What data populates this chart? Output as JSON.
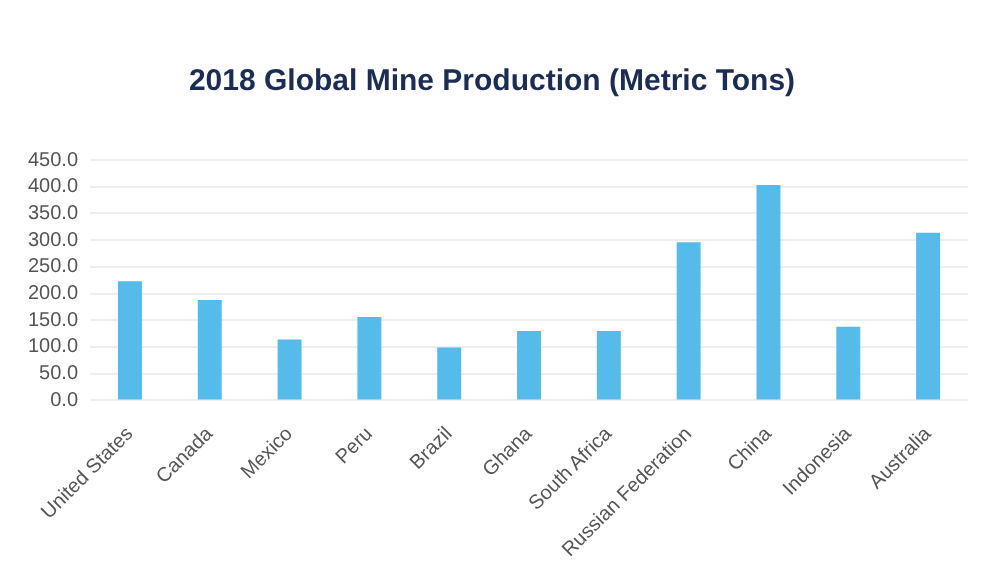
{
  "chart_data": {
    "type": "bar",
    "title": "2018 Global Mine Production (Metric Tons)",
    "categories": [
      "United States",
      "Canada",
      "Mexico",
      "Peru",
      "Brazil",
      "Ghana",
      "South Africa",
      "Russian Federation",
      "China",
      "Indonesia",
      "Australia"
    ],
    "values": [
      223,
      188,
      114,
      156,
      99,
      130,
      130,
      296,
      403,
      138,
      314
    ],
    "color": "#55bbea",
    "ylim": [
      0,
      450
    ],
    "yticks": [
      {
        "value": 0,
        "label": "0.0"
      },
      {
        "value": 50,
        "label": "50.0"
      },
      {
        "value": 100,
        "label": "100.0"
      },
      {
        "value": 150,
        "label": "150.0"
      },
      {
        "value": 200,
        "label": "200.0"
      },
      {
        "value": 250,
        "label": "250.0"
      },
      {
        "value": 300,
        "label": "300.0"
      },
      {
        "value": 350,
        "label": "350.0"
      },
      {
        "value": 400,
        "label": "400.0"
      },
      {
        "value": 450,
        "label": "450.0"
      }
    ],
    "grid": "y"
  }
}
